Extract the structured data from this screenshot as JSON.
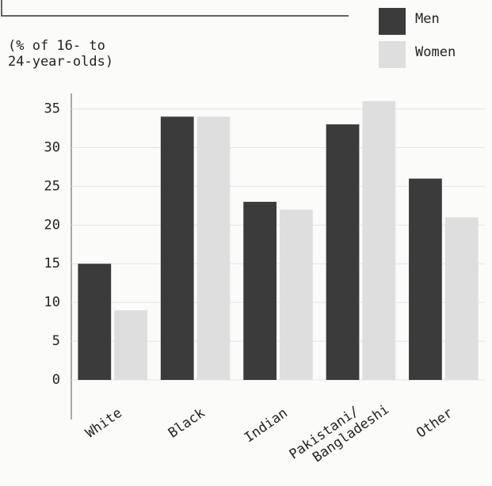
{
  "chart_data": {
    "type": "bar",
    "y_label": "(% of 16- to 24-year-olds)",
    "categories": [
      "White",
      "Black",
      "Indian",
      "Pakistani/ Bangladeshi",
      "Other"
    ],
    "series": [
      {
        "name": "Men",
        "color": "#3b3b3b",
        "values": [
          15,
          34,
          23,
          33,
          26
        ]
      },
      {
        "name": "Women",
        "color": "#dedede",
        "values": [
          9,
          34,
          22,
          36,
          21
        ]
      }
    ],
    "ylim": [
      0,
      37
    ],
    "yticks": [
      0,
      5,
      10,
      15,
      20,
      25,
      30,
      35
    ],
    "grid": true,
    "legend": "top-right"
  }
}
